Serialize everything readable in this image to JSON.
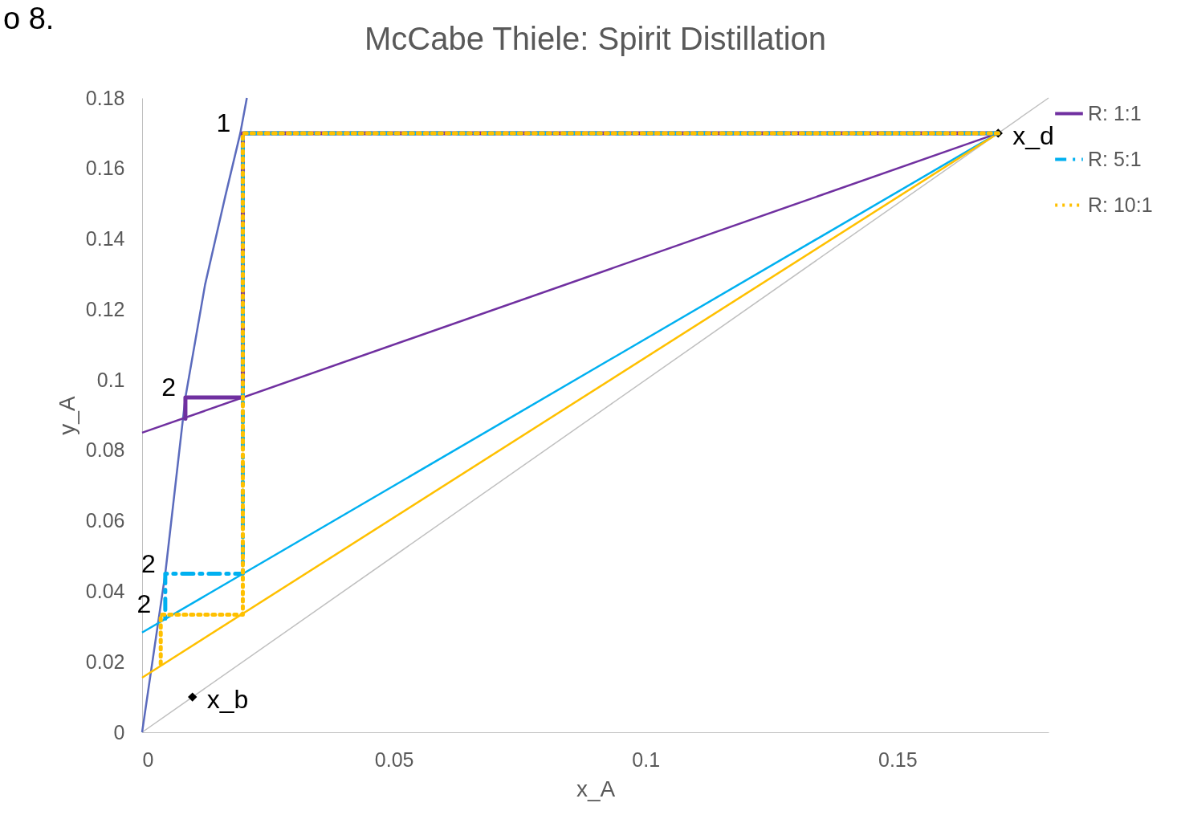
{
  "chart_data": {
    "type": "line",
    "title": "McCabe Thiele: Spirit Distillation",
    "xlabel": "x_A",
    "ylabel": "y_A",
    "xlim": [
      0,
      0.18
    ],
    "ylim": [
      0,
      0.18
    ],
    "xticks": [
      0,
      0.05,
      0.1,
      0.15
    ],
    "yticks": [
      0,
      0.02,
      0.04,
      0.06,
      0.08,
      0.1,
      0.12,
      0.14,
      0.16,
      0.18
    ],
    "grid": false,
    "legend": "right",
    "series": [
      {
        "color": "#bfbfbf",
        "x": [
          0,
          0.18
        ],
        "values": [
          0,
          0.18
        ],
        "line_style": "solid"
      },
      {
        "color": "#5b6bbd",
        "x": [
          0,
          0.0046,
          0.0086,
          0.0125,
          0.0165,
          0.0195,
          0.0208
        ],
        "values": [
          0,
          0.045,
          0.095,
          0.127,
          0.152,
          0.17,
          0.18
        ],
        "line_style": "solid"
      },
      {
        "color": "#7030a0",
        "x": [
          0,
          0.17
        ],
        "values": [
          0.085,
          0.17
        ],
        "line_style": "solid"
      },
      {
        "color": "#00b0f0",
        "x": [
          0,
          0.17
        ],
        "values": [
          0.0283,
          0.17
        ],
        "line_style": "solid"
      },
      {
        "color": "#ffc000",
        "x": [
          0,
          0.17
        ],
        "values": [
          0.0155,
          0.17
        ],
        "line_style": "solid"
      },
      {
        "name": "R: 1:1",
        "color": "#7030a0",
        "x": [
          0.17,
          0.02,
          0.02,
          0.0086,
          0.0086
        ],
        "values": [
          0.17,
          0.17,
          0.095,
          0.095,
          0.089
        ],
        "line_style": "solid"
      },
      {
        "name": "R: 5:1",
        "color": "#00b0f0",
        "x": [
          0.17,
          0.02,
          0.02,
          0.0046,
          0.0046
        ],
        "values": [
          0.17,
          0.17,
          0.045,
          0.045,
          0.032
        ],
        "line_style": "dashed"
      },
      {
        "name": "R: 10:1",
        "color": "#ffc000",
        "x": [
          0.17,
          0.02,
          0.02,
          0.0037,
          0.0037
        ],
        "values": [
          0.17,
          0.17,
          0.0334,
          0.0334,
          0.0189
        ],
        "line_style": "dotted"
      },
      {
        "type": "scatter",
        "color": "#000000",
        "x": [
          0.17,
          0.01
        ],
        "values": [
          0.17,
          0.01
        ],
        "marker": "diamond"
      }
    ],
    "annotations": [
      "o 8.",
      {
        "text": "x_d",
        "x": 0.17,
        "y": 0.17
      },
      {
        "text": "x_b",
        "x": 0.01,
        "y": 0.01
      },
      {
        "text": "1",
        "x": 0.0195,
        "y": 0.17
      },
      {
        "text": "2",
        "x": 0.0086,
        "y": 0.095
      },
      {
        "text": "2",
        "x": 0.0046,
        "y": 0.045
      },
      {
        "text": "2",
        "x": 0.0037,
        "y": 0.0334
      }
    ]
  }
}
